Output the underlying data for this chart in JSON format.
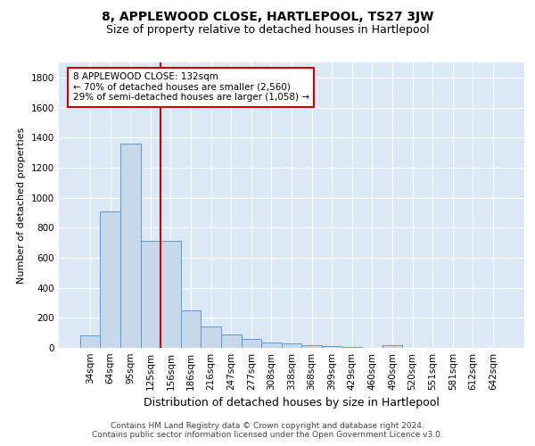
{
  "title": "8, APPLEWOOD CLOSE, HARTLEPOOL, TS27 3JW",
  "subtitle": "Size of property relative to detached houses in Hartlepool",
  "xlabel": "Distribution of detached houses by size in Hartlepool",
  "ylabel": "Number of detached properties",
  "categories": [
    "34sqm",
    "64sqm",
    "95sqm",
    "125sqm",
    "156sqm",
    "186sqm",
    "216sqm",
    "247sqm",
    "277sqm",
    "308sqm",
    "338sqm",
    "368sqm",
    "399sqm",
    "429sqm",
    "460sqm",
    "490sqm",
    "520sqm",
    "551sqm",
    "581sqm",
    "612sqm",
    "642sqm"
  ],
  "values": [
    85,
    910,
    1360,
    715,
    715,
    248,
    145,
    88,
    58,
    35,
    30,
    15,
    10,
    8,
    0,
    20,
    0,
    0,
    0,
    0,
    0
  ],
  "bar_color": "#c8d8ec",
  "bar_edge_color": "#5b9bd5",
  "red_line_x": 3.5,
  "red_line_color": "#cc0000",
  "annotation_text": "8 APPLEWOOD CLOSE: 132sqm\n← 70% of detached houses are smaller (2,560)\n29% of semi-detached houses are larger (1,058) →",
  "annotation_box_color": "#ffffff",
  "annotation_box_edge": "#cc0000",
  "ylim": [
    0,
    1900
  ],
  "yticks": [
    0,
    200,
    400,
    600,
    800,
    1000,
    1200,
    1400,
    1600,
    1800
  ],
  "plot_bg_color": "#dce8f5",
  "footer": "Contains HM Land Registry data © Crown copyright and database right 2024.\nContains public sector information licensed under the Open Government Licence v3.0.",
  "title_fontsize": 10,
  "subtitle_fontsize": 9,
  "xlabel_fontsize": 9,
  "ylabel_fontsize": 8,
  "tick_fontsize": 7.5,
  "footer_fontsize": 6.5,
  "ann_fontsize": 7.5
}
